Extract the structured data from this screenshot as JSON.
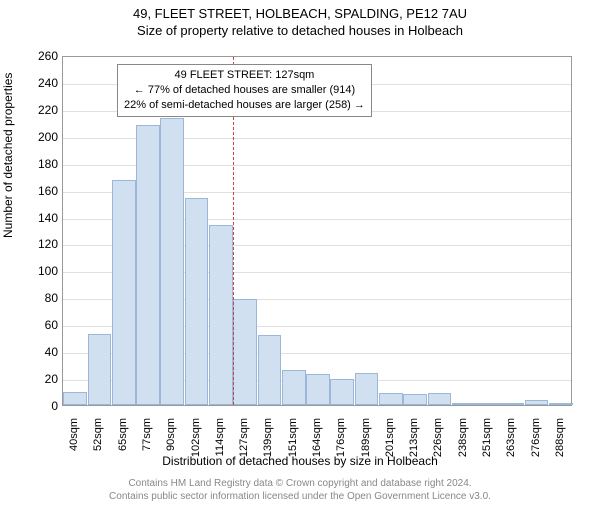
{
  "header": {
    "title": "49, FLEET STREET, HOLBEACH, SPALDING, PE12 7AU",
    "subtitle": "Size of property relative to detached houses in Holbeach"
  },
  "chart": {
    "type": "histogram",
    "ylabel": "Number of detached properties",
    "xlabel": "Distribution of detached houses by size in Holbeach",
    "ylim": [
      0,
      260
    ],
    "ytick_step": 20,
    "xticks": [
      "40sqm",
      "52sqm",
      "65sqm",
      "77sqm",
      "90sqm",
      "102sqm",
      "114sqm",
      "127sqm",
      "139sqm",
      "151sqm",
      "164sqm",
      "176sqm",
      "189sqm",
      "201sqm",
      "213sqm",
      "226sqm",
      "238sqm",
      "251sqm",
      "263sqm",
      "276sqm",
      "288sqm"
    ],
    "values": [
      10,
      53,
      167,
      208,
      213,
      154,
      134,
      79,
      52,
      26,
      23,
      19,
      24,
      9,
      8,
      9,
      1,
      1,
      0,
      4,
      0
    ],
    "bar_fill": "#d0e0f0",
    "bar_border": "#9bb8d8",
    "grid_color": "#e0e0e0",
    "background_color": "#ffffff",
    "marker_index": 7,
    "marker_color": "#d04040"
  },
  "annotation": {
    "line1": "49 FLEET STREET: 127sqm",
    "line2": "← 77% of detached houses are smaller (914)",
    "line3": "22% of semi-detached houses are larger (258) →"
  },
  "credits": {
    "line1": "Contains HM Land Registry data © Crown copyright and database right 2024.",
    "line2": "Contains public sector information licensed under the Open Government Licence v3.0."
  }
}
